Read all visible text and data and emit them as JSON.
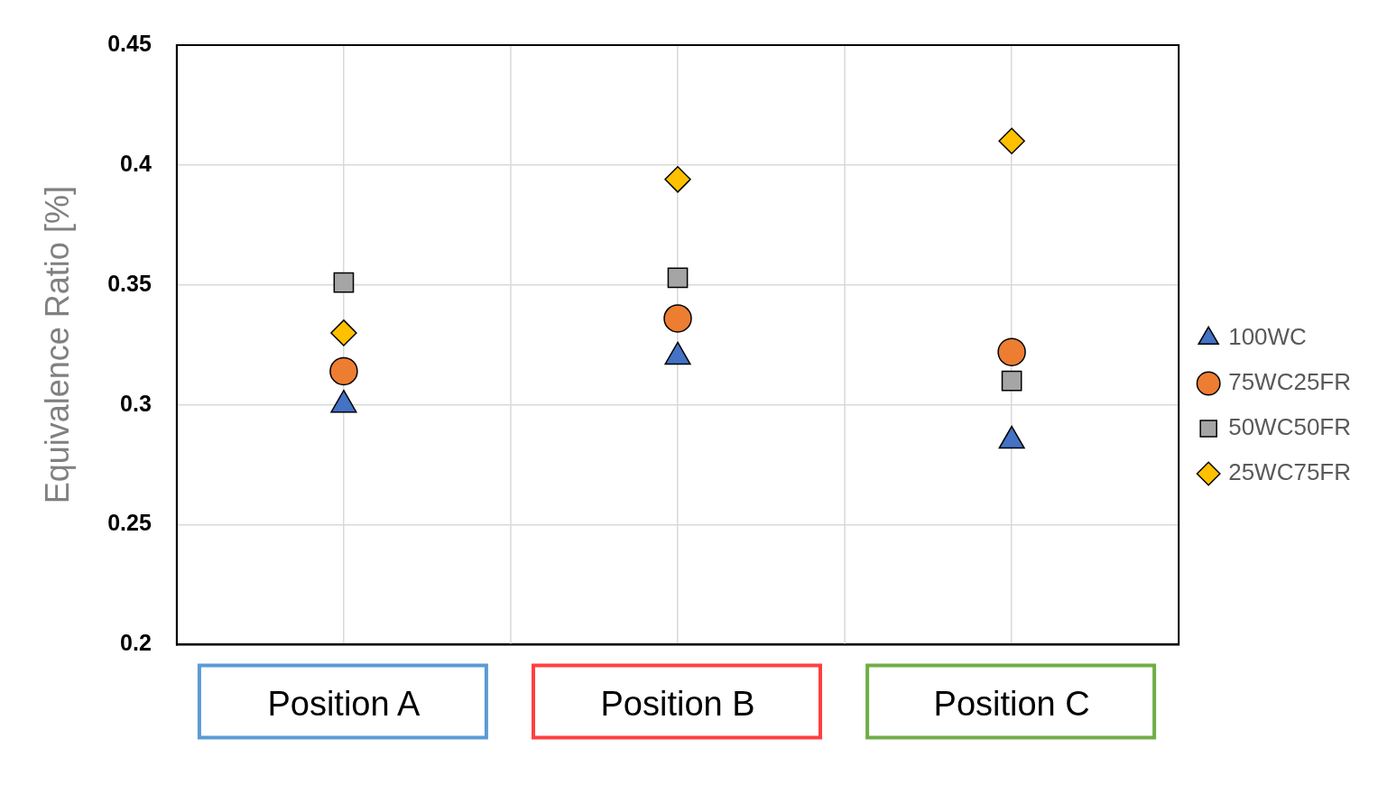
{
  "chart_data": {
    "type": "scatter",
    "ylabel": "Equivalence Ratio [%]",
    "categories": [
      "Position A",
      "Position B",
      "Position C"
    ],
    "series": [
      {
        "name": "100WC",
        "color": "#4472c4",
        "marker": "triangle",
        "values": [
          0.3,
          0.32,
          0.285
        ]
      },
      {
        "name": "75WC25FR",
        "color": "#ed7d31",
        "marker": "circle",
        "values": [
          0.314,
          0.336,
          0.322
        ]
      },
      {
        "name": "50WC50FR",
        "color": "#a5a5a5",
        "marker": "square",
        "values": [
          0.351,
          0.353,
          0.31
        ]
      },
      {
        "name": "25WC75FR",
        "color": "#ffc000",
        "marker": "diamond",
        "values": [
          0.33,
          0.394,
          0.41
        ]
      }
    ],
    "ylim": [
      0.2,
      0.45
    ],
    "yticks": [
      0.2,
      0.25,
      0.3,
      0.35,
      0.4,
      0.45
    ],
    "grid": true,
    "legend": "right"
  }
}
